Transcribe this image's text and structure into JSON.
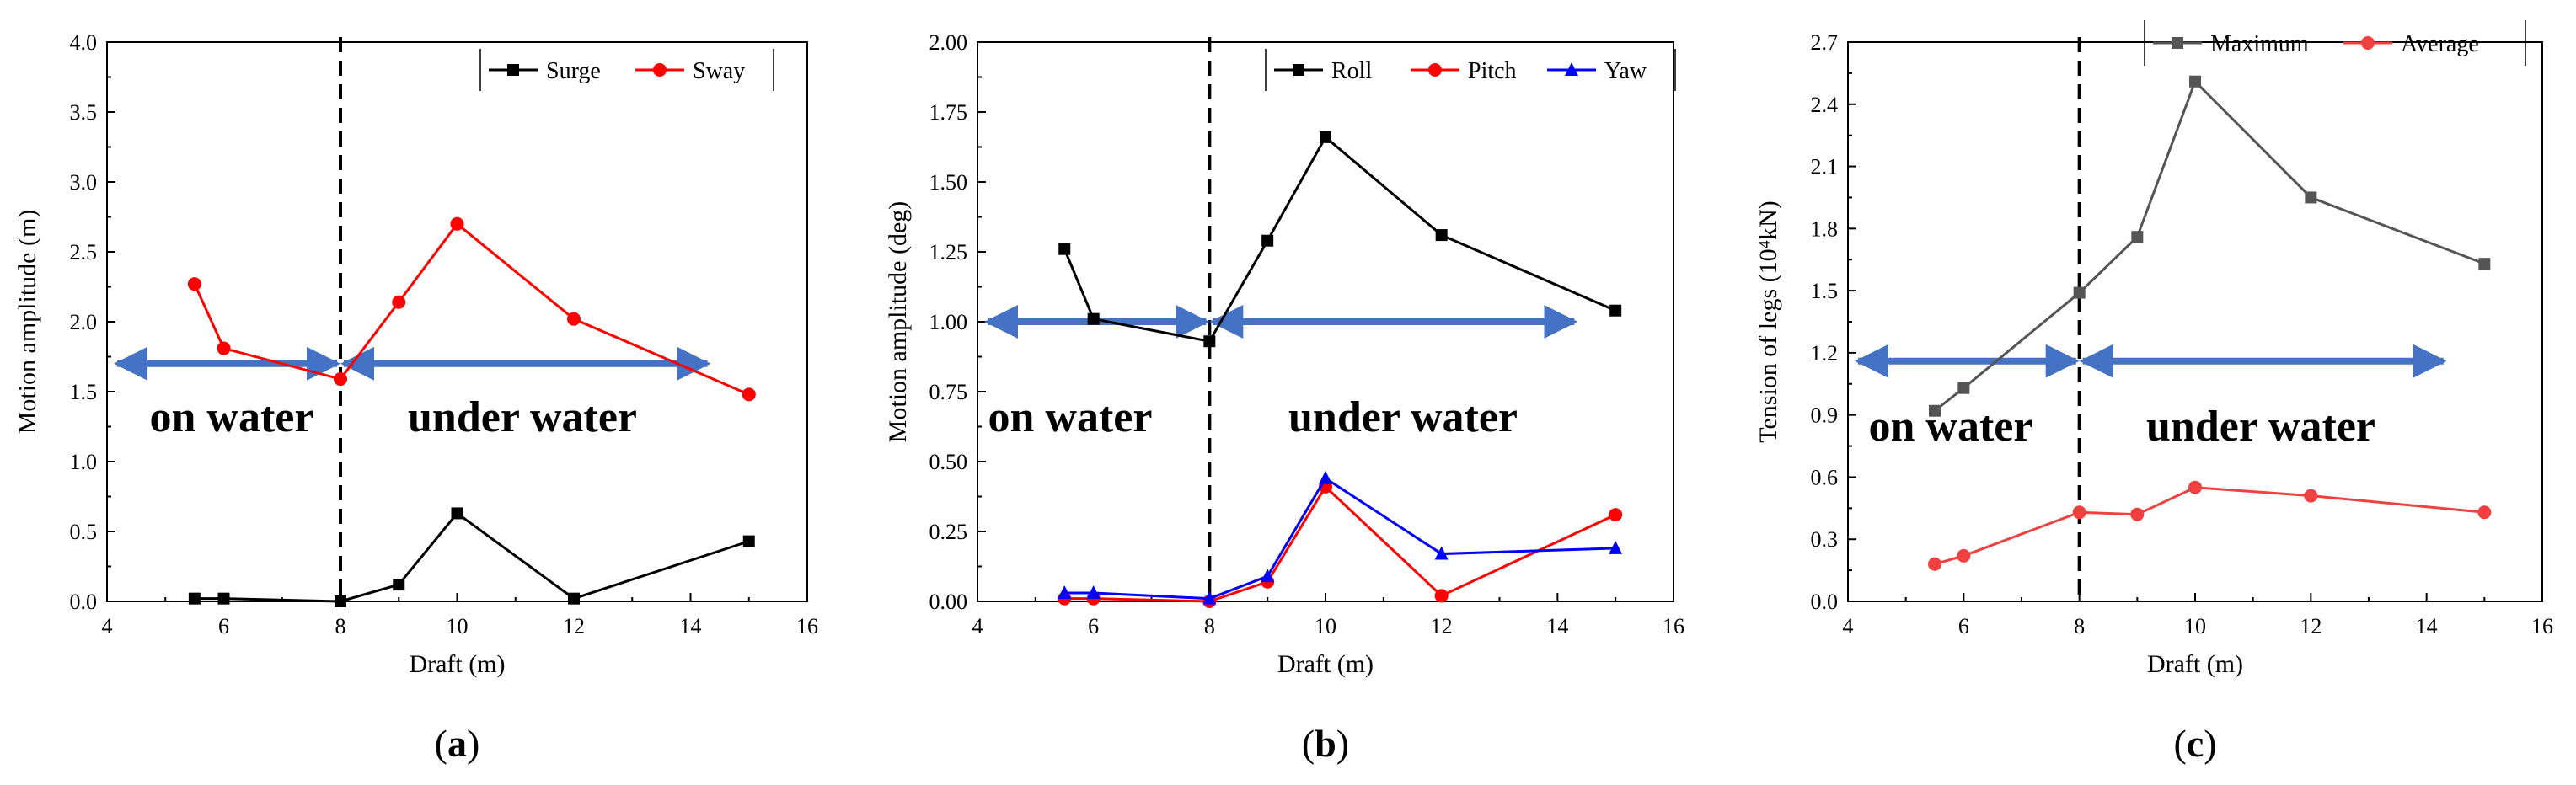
{
  "panels": [
    {
      "letter": "a",
      "caption_open": "(",
      "caption_close": ")",
      "annotations": {
        "left_region": "on water",
        "right_region": "under water"
      }
    },
    {
      "letter": "b",
      "caption_open": "(",
      "caption_close": ")",
      "annotations": {
        "left_region": "on water",
        "right_region": "under water"
      }
    },
    {
      "letter": "c",
      "caption_open": "(",
      "caption_close": ")",
      "annotations": {
        "left_region": "on water",
        "right_region": "under water"
      }
    }
  ],
  "chart_data": [
    {
      "type": "line",
      "title": "",
      "xlabel": "Draft (m)",
      "ylabel": "Motion amplitude (m)",
      "xlim": [
        4,
        16
      ],
      "ylim": [
        0,
        4.0
      ],
      "xticks": [
        "4",
        "6",
        "8",
        "10",
        "12",
        "14",
        "16"
      ],
      "yticks": [
        "0.0",
        "0.5",
        "1.0",
        "1.5",
        "2.0",
        "2.5",
        "3.0",
        "3.5",
        "4.0"
      ],
      "divider_x": 8,
      "arrow_y": 1.7,
      "legend_position": "top-right",
      "series": [
        {
          "name": "Surge",
          "color": "#000000",
          "marker": "square",
          "x": [
            5.5,
            6,
            8,
            9,
            10,
            12,
            15
          ],
          "y": [
            0.02,
            0.02,
            0.0,
            0.12,
            0.63,
            0.02,
            0.43
          ]
        },
        {
          "name": "Sway",
          "color": "#ff0000",
          "marker": "circle",
          "x": [
            5.5,
            6,
            8,
            9,
            10,
            12,
            15
          ],
          "y": [
            2.27,
            1.81,
            1.59,
            2.14,
            2.7,
            2.02,
            1.48
          ]
        }
      ]
    },
    {
      "type": "line",
      "title": "",
      "xlabel": "Draft (m)",
      "ylabel": "Motion amplitude (deg)",
      "xlim": [
        4,
        16
      ],
      "ylim": [
        0,
        2.0
      ],
      "xticks": [
        "4",
        "6",
        "8",
        "10",
        "12",
        "14",
        "16"
      ],
      "yticks": [
        "0.00",
        "0.25",
        "0.50",
        "0.75",
        "1.00",
        "1.25",
        "1.50",
        "1.75",
        "2.00"
      ],
      "divider_x": 8,
      "arrow_y": 1.0,
      "legend_position": "top-right",
      "series": [
        {
          "name": "Roll",
          "color": "#000000",
          "marker": "square",
          "x": [
            5.5,
            6,
            8,
            9,
            10,
            12,
            15
          ],
          "y": [
            1.26,
            1.01,
            0.93,
            1.29,
            1.66,
            1.31,
            1.04
          ]
        },
        {
          "name": "Pitch",
          "color": "#ff0000",
          "marker": "circle",
          "x": [
            5.5,
            6,
            8,
            9,
            10,
            12,
            15
          ],
          "y": [
            0.01,
            0.01,
            0.0,
            0.07,
            0.41,
            0.02,
            0.31
          ]
        },
        {
          "name": "Yaw",
          "color": "#0000ff",
          "marker": "triangle",
          "x": [
            5.5,
            6,
            8,
            9,
            10,
            12,
            15
          ],
          "y": [
            0.03,
            0.03,
            0.01,
            0.09,
            0.44,
            0.17,
            0.19
          ]
        }
      ]
    },
    {
      "type": "line",
      "title": "",
      "xlabel": "Draft (m)",
      "ylabel": "Tension of legs (10⁴kN)",
      "xlim": [
        4,
        16
      ],
      "ylim": [
        0,
        2.7
      ],
      "xticks": [
        "4",
        "6",
        "8",
        "10",
        "12",
        "14",
        "16"
      ],
      "yticks": [
        "0.0",
        "0.3",
        "0.6",
        "0.9",
        "1.2",
        "1.5",
        "1.8",
        "2.1",
        "2.4",
        "2.7"
      ],
      "divider_x": 8,
      "arrow_y": 1.16,
      "legend_position": "top-right",
      "series": [
        {
          "name": "Maximum",
          "color": "#555555",
          "marker": "square",
          "x": [
            5.5,
            6,
            8,
            9,
            10,
            12,
            15
          ],
          "y": [
            0.92,
            1.03,
            1.49,
            1.76,
            2.51,
            1.95,
            1.63
          ]
        },
        {
          "name": "Average",
          "color": "#f04040",
          "marker": "circle",
          "x": [
            5.5,
            6,
            8,
            9,
            10,
            12,
            15
          ],
          "y": [
            0.18,
            0.22,
            0.43,
            0.42,
            0.55,
            0.51,
            0.43
          ]
        }
      ]
    }
  ]
}
